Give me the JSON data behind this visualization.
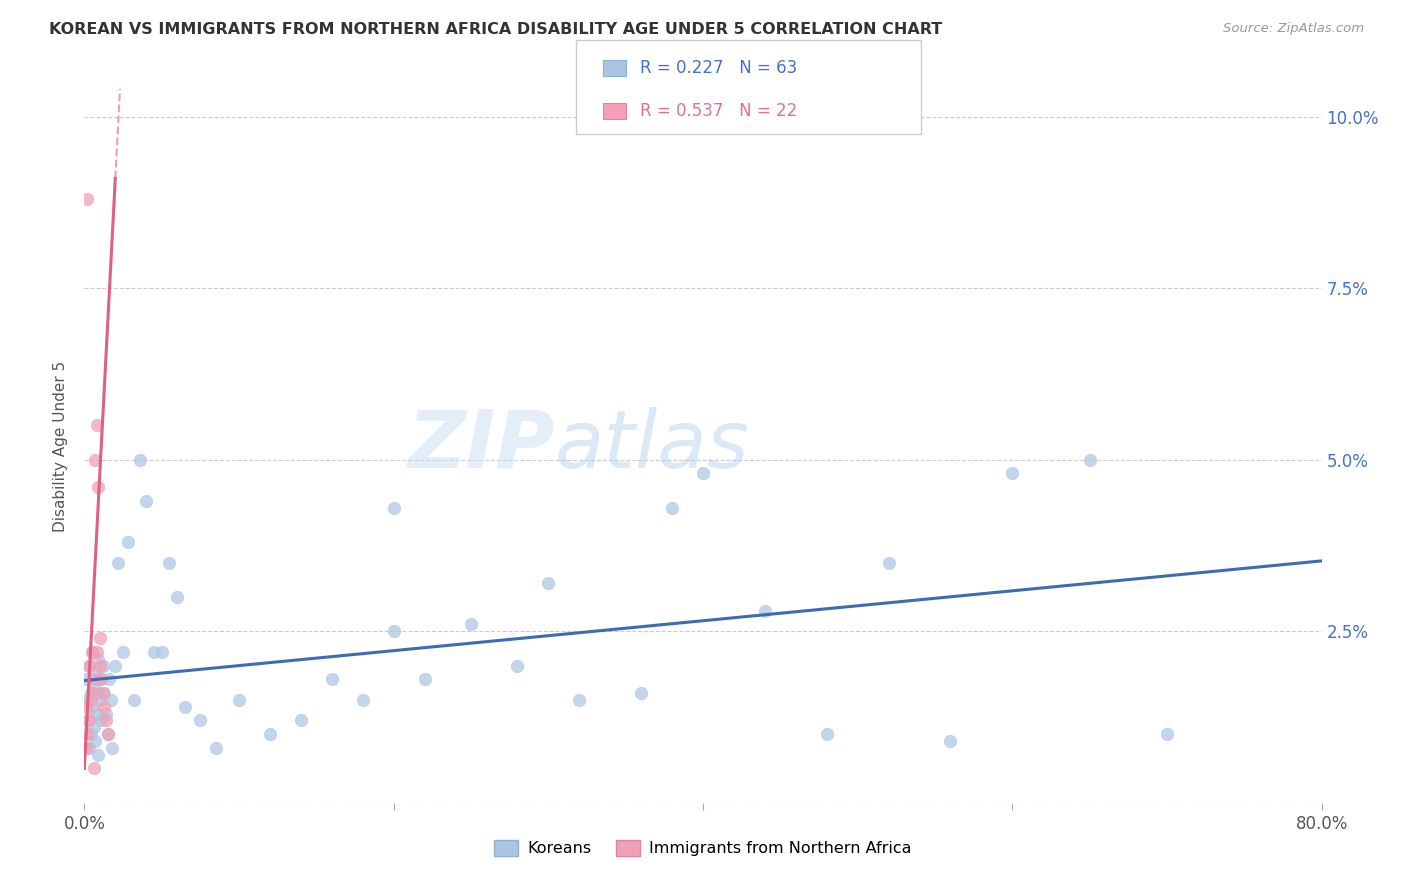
{
  "title": "KOREAN VS IMMIGRANTS FROM NORTHERN AFRICA DISABILITY AGE UNDER 5 CORRELATION CHART",
  "source": "Source: ZipAtlas.com",
  "ylabel": "Disability Age Under 5",
  "xlim": [
    0.0,
    0.8
  ],
  "ylim": [
    0.0,
    0.104
  ],
  "korean_R": 0.227,
  "korean_N": 63,
  "africa_R": 0.537,
  "africa_N": 22,
  "korean_color": "#aac4e2",
  "africa_color": "#f2a0b5",
  "korean_line_color": "#3d6cb5",
  "africa_line_color": "#e06080",
  "background_color": "#ffffff",
  "grid_color": "#cccccc",
  "legend_label1": "Koreans",
  "legend_label2": "Immigrants from Northern Africa",
  "koreans_x": [
    0.001,
    0.002,
    0.002,
    0.003,
    0.003,
    0.004,
    0.004,
    0.005,
    0.005,
    0.006,
    0.006,
    0.007,
    0.007,
    0.008,
    0.008,
    0.009,
    0.009,
    0.01,
    0.01,
    0.011,
    0.012,
    0.013,
    0.014,
    0.015,
    0.016,
    0.017,
    0.018,
    0.02,
    0.022,
    0.025,
    0.028,
    0.032,
    0.036,
    0.04,
    0.045,
    0.05,
    0.055,
    0.06,
    0.065,
    0.075,
    0.085,
    0.1,
    0.12,
    0.14,
    0.16,
    0.18,
    0.2,
    0.22,
    0.25,
    0.28,
    0.32,
    0.36,
    0.4,
    0.44,
    0.48,
    0.52,
    0.56,
    0.6,
    0.65,
    0.7,
    0.2,
    0.3,
    0.38
  ],
  "koreans_y": [
    0.018,
    0.015,
    0.012,
    0.02,
    0.008,
    0.016,
    0.01,
    0.014,
    0.022,
    0.011,
    0.017,
    0.019,
    0.009,
    0.016,
    0.013,
    0.021,
    0.007,
    0.015,
    0.018,
    0.012,
    0.02,
    0.016,
    0.013,
    0.01,
    0.018,
    0.015,
    0.008,
    0.02,
    0.035,
    0.022,
    0.038,
    0.015,
    0.05,
    0.044,
    0.022,
    0.022,
    0.035,
    0.03,
    0.014,
    0.012,
    0.008,
    0.015,
    0.01,
    0.012,
    0.018,
    0.015,
    0.025,
    0.018,
    0.026,
    0.02,
    0.015,
    0.016,
    0.048,
    0.028,
    0.01,
    0.035,
    0.009,
    0.048,
    0.05,
    0.01,
    0.043,
    0.032,
    0.043
  ],
  "africa_x": [
    0.001,
    0.002,
    0.002,
    0.003,
    0.003,
    0.004,
    0.005,
    0.005,
    0.006,
    0.006,
    0.007,
    0.008,
    0.008,
    0.009,
    0.01,
    0.01,
    0.011,
    0.012,
    0.013,
    0.014,
    0.015,
    0.002
  ],
  "africa_y": [
    0.008,
    0.01,
    0.014,
    0.012,
    0.02,
    0.015,
    0.016,
    0.022,
    0.005,
    0.018,
    0.05,
    0.055,
    0.022,
    0.046,
    0.024,
    0.02,
    0.018,
    0.016,
    0.014,
    0.012,
    0.01,
    0.088
  ]
}
